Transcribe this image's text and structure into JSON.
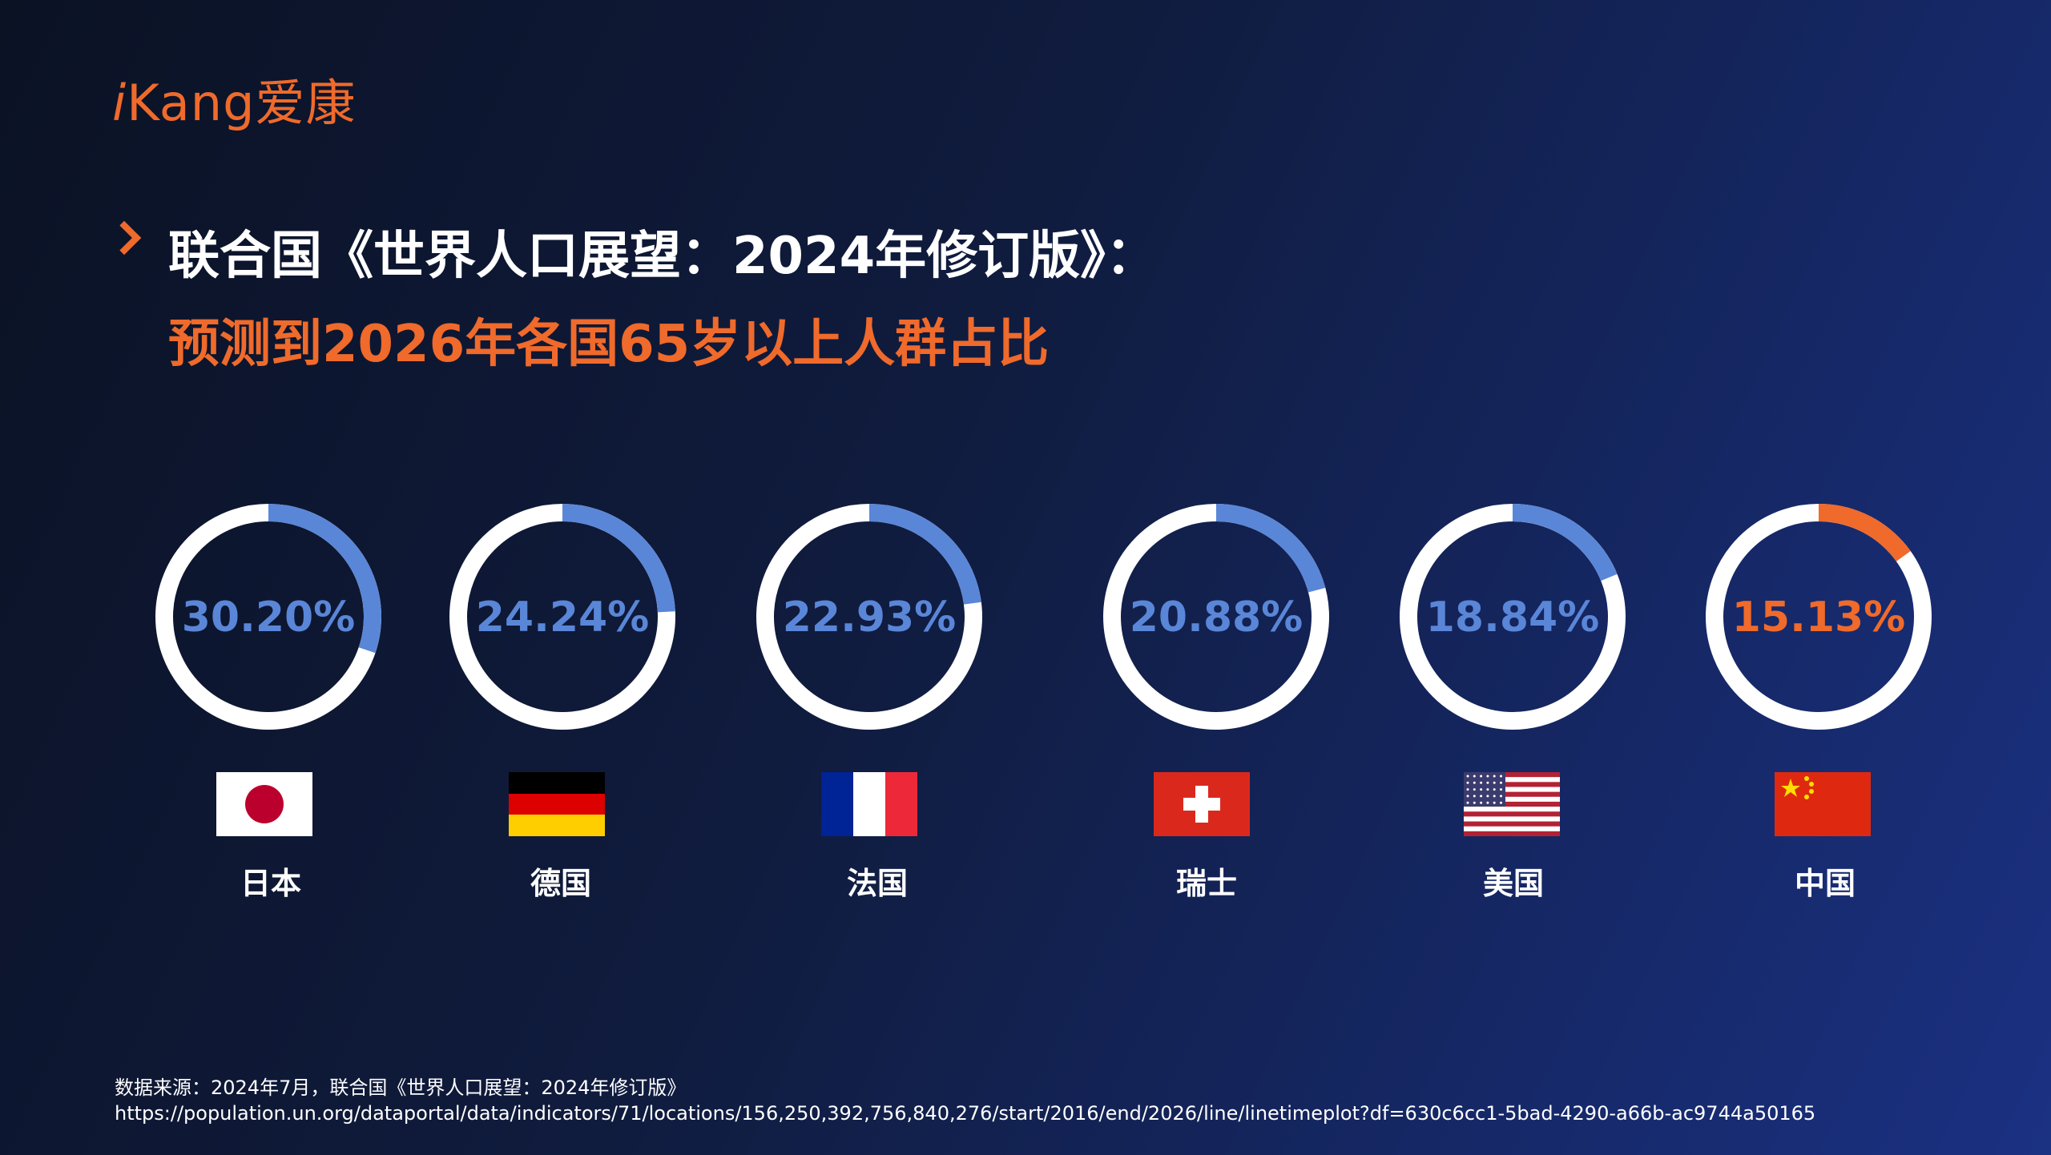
{
  "logo": {
    "prefix": "i",
    "main": "Kang",
    "cn": "爱康"
  },
  "title": {
    "line1": "联合国《世界人口展望：2024年修订版》：",
    "line2": "预测到2026年各国65岁以上人群占比"
  },
  "chart_data": {
    "type": "donut",
    "categories": [
      "日本",
      "德国",
      "法国",
      "瑞士",
      "美国",
      "中国"
    ],
    "values": [
      30.2,
      24.24,
      22.93,
      20.88,
      18.84,
      15.13
    ],
    "labels": [
      "30.20%",
      "24.24%",
      "22.93%",
      "20.88%",
      "18.84%",
      "15.13%"
    ],
    "colors": [
      "#5a86d8",
      "#5a86d8",
      "#5a86d8",
      "#5a86d8",
      "#5a86d8",
      "#ef6a2b"
    ],
    "track_color": "#ffffff",
    "unit": "%"
  },
  "flags": [
    "japan-flag-icon",
    "germany-flag-icon",
    "france-flag-icon",
    "switzerland-flag-icon",
    "usa-flag-icon",
    "china-flag-icon"
  ],
  "source": {
    "line1": "数据来源：2024年7月，联合国《世界人口展望：2024年修订版》",
    "line2": "https://population.un.org/dataportal/data/indicators/71/locations/156,250,392,756,840,276/start/2016/end/2026/line/linetimeplot?df=630c6cc1-5bad-4290-a66b-ac9744a50165"
  }
}
